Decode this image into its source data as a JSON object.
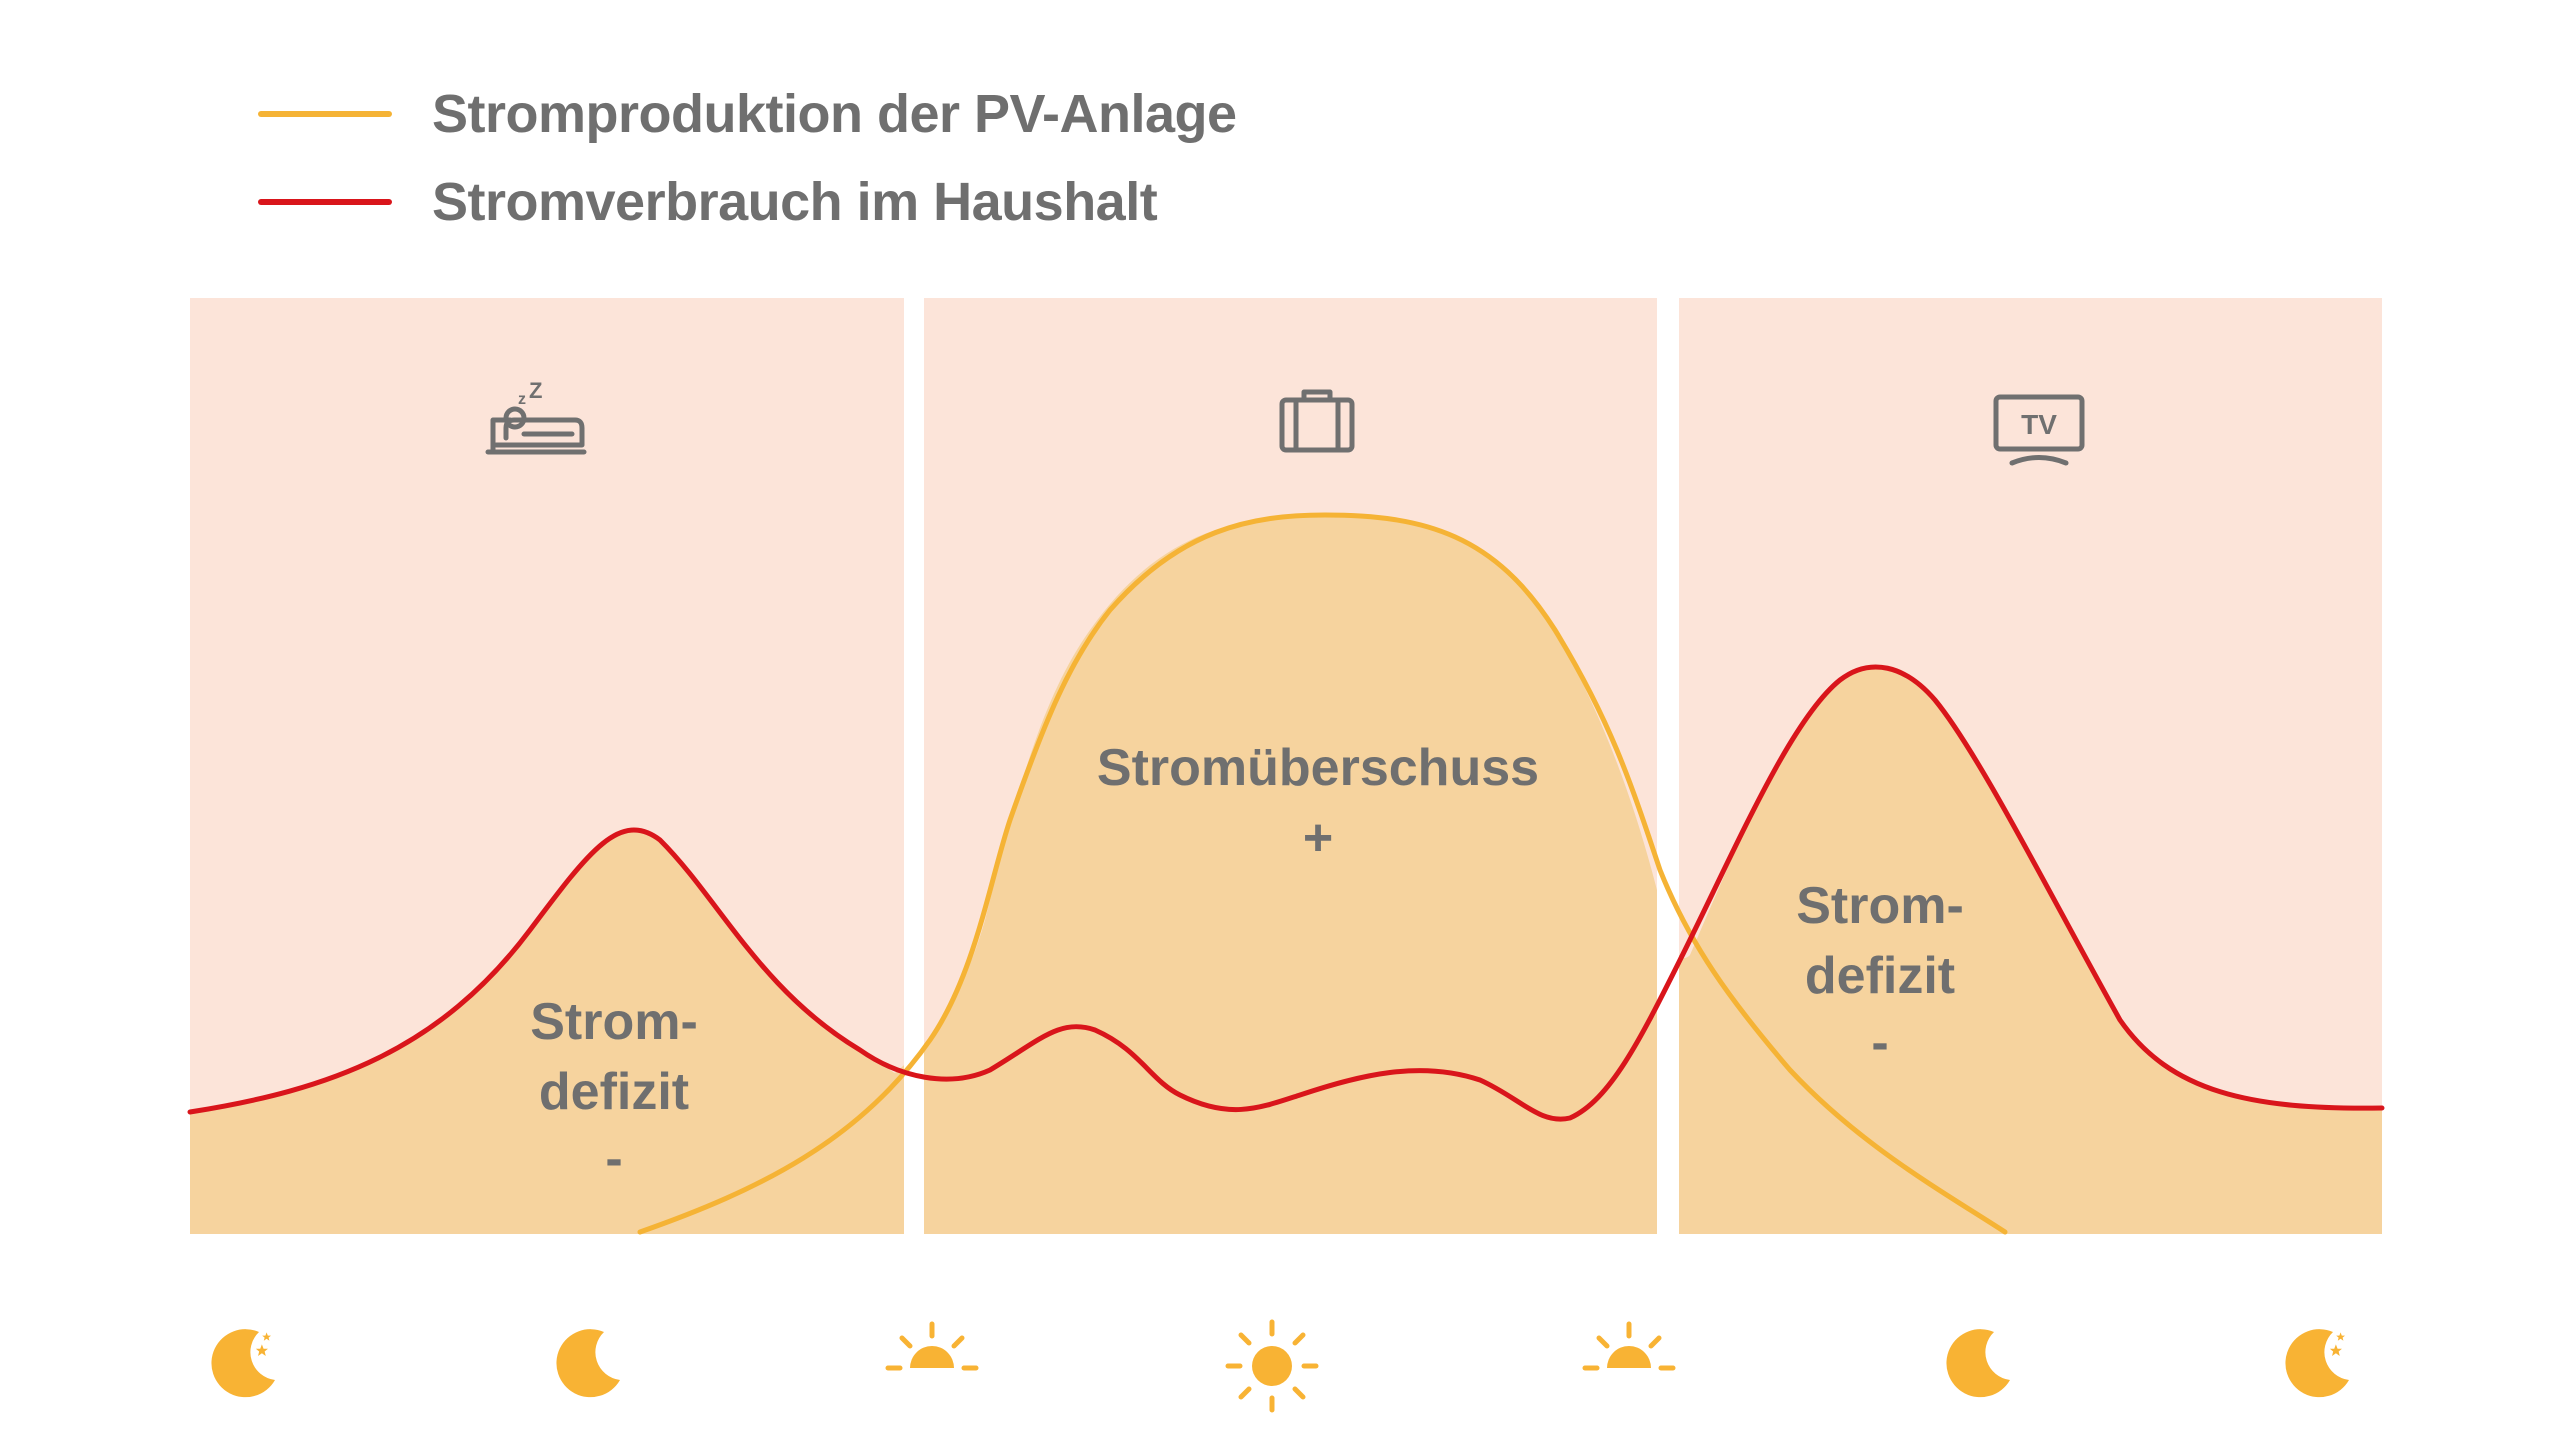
{
  "legend": [
    {
      "label": "Stromproduktion der PV-Anlage",
      "color": "#F5B335"
    },
    {
      "label": "Stromverbrauch im Haushalt",
      "color": "#D9151B"
    }
  ],
  "panels": [
    {
      "icon": "sleeping-in-bed-icon",
      "lines": [
        "Strom-",
        "defizit",
        "-"
      ]
    },
    {
      "icon": "briefcase-icon",
      "lines": [
        "Stromüberschuss",
        "+"
      ]
    },
    {
      "icon": "tv-icon",
      "icon_text": "TV",
      "lines": [
        "Strom-",
        "defizit",
        "-"
      ]
    }
  ],
  "time_icons": [
    "moon-with-stars-icon",
    "moon-icon",
    "sunrise-icon",
    "sun-icon",
    "sunset-icon",
    "moon-icon",
    "moon-with-stars-icon"
  ],
  "colors": {
    "panel_bg": "#FCE4D9",
    "area_fill": "#F6D39E",
    "production": "#F5B335",
    "consumption": "#D9151B",
    "icon_orange": "#F8B334",
    "icon_gray": "#707070"
  }
}
